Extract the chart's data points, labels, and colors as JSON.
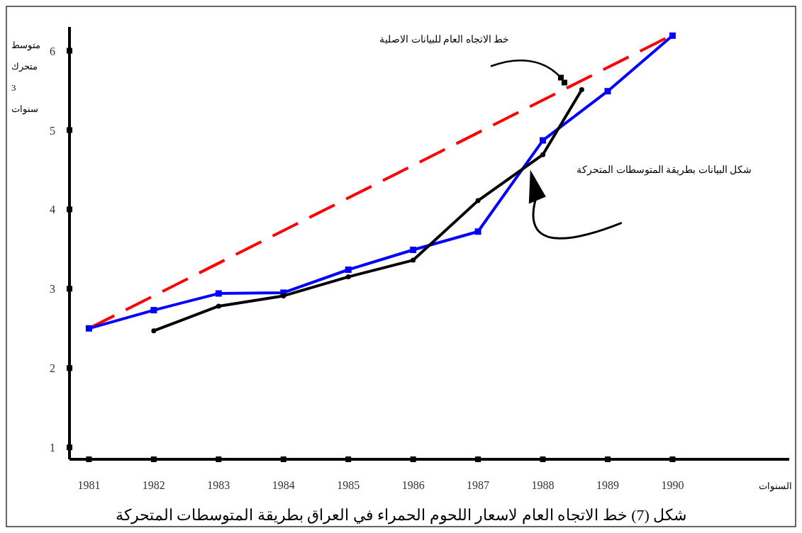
{
  "chart_data": {
    "type": "line",
    "title": "شكل (7) خط الاتجاه العام لاسعار اللحوم الحمراء في العراق بطريقة المتوسطات المتحركة",
    "xlabel": "السنوات",
    "ylabel": "متوسط متحرك 3 سنوات",
    "xlim": [
      1980.7,
      1991.8
    ],
    "xticks": [
      1981,
      1982,
      1983,
      1984,
      1985,
      1986,
      1987,
      1988,
      1989,
      1990
    ],
    "ylim": [
      0.85,
      6.3
    ],
    "yticks": [
      1,
      2,
      3,
      4,
      5,
      6
    ],
    "grid": false,
    "series": [
      {
        "color": "#ff0000",
        "line_style": "dashed",
        "marker": "none",
        "x": [
          1981,
          1990
        ],
        "values": [
          2.5,
          6.2
        ]
      },
      {
        "color": "#0000ff",
        "line_style": "solid",
        "marker": "square",
        "x": [
          1981,
          1982,
          1983,
          1984,
          1985,
          1986,
          1987,
          1988,
          1989,
          1990
        ],
        "values": [
          2.5,
          2.73,
          2.94,
          2.95,
          3.24,
          3.49,
          3.72,
          4.87,
          5.49,
          6.19
        ]
      },
      {
        "color": "#000000",
        "line_style": "solid",
        "marker": "circle",
        "x": [
          1982,
          1983,
          1984,
          1985,
          1986,
          1987,
          1988,
          1988.6
        ],
        "values": [
          2.47,
          2.78,
          2.91,
          3.15,
          3.36,
          4.11,
          4.69,
          5.51
        ]
      }
    ],
    "annotations": [
      "خط الاتجاه العام للبيانات الاصلية",
      "شكل البيانات بطريقة المتوسطات المتحركة"
    ]
  }
}
